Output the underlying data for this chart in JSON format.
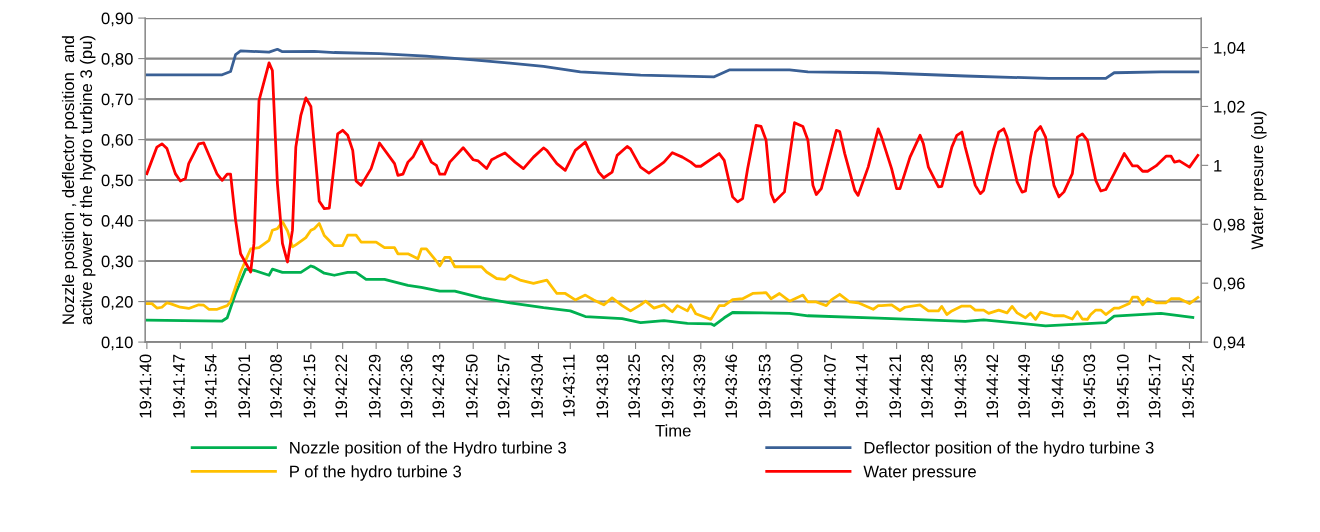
{
  "chart_data": {
    "type": "line",
    "xlabel": "Time",
    "ylabel": "Nozzle position , deflector position  and\nactive power of the hydro turbine 3 (pu)",
    "y2label": "Water presure (pu)",
    "xlim": [
      19.6943,
      19.7574
    ],
    "xticks": [
      {
        "value": 19.6944,
        "label": "19:41:40"
      },
      {
        "value": 19.6964,
        "label": "19:41:47"
      },
      {
        "value": 19.6983,
        "label": "19:41:54"
      },
      {
        "value": 19.7003,
        "label": "19:42:01"
      },
      {
        "value": 19.7022,
        "label": "19:42:08"
      },
      {
        "value": 19.7042,
        "label": "19:42:15"
      },
      {
        "value": 19.7061,
        "label": "19:42:22"
      },
      {
        "value": 19.7081,
        "label": "19:42:29"
      },
      {
        "value": 19.71,
        "label": "19:42:36"
      },
      {
        "value": 19.7119,
        "label": "19:42:43"
      },
      {
        "value": 19.7139,
        "label": "19:42:50"
      },
      {
        "value": 19.7158,
        "label": "19:42:57"
      },
      {
        "value": 19.7178,
        "label": "19:43:04"
      },
      {
        "value": 19.7197,
        "label": "19:43:11"
      },
      {
        "value": 19.7217,
        "label": "19:43:18"
      },
      {
        "value": 19.7236,
        "label": "19:43:25"
      },
      {
        "value": 19.7256,
        "label": "19:43:32"
      },
      {
        "value": 19.7275,
        "label": "19:43:39"
      },
      {
        "value": 19.7294,
        "label": "19:43:46"
      },
      {
        "value": 19.7314,
        "label": "19:43:53"
      },
      {
        "value": 19.7333,
        "label": "19:44:00"
      },
      {
        "value": 19.7353,
        "label": "19:44:07"
      },
      {
        "value": 19.7372,
        "label": "19:44:14"
      },
      {
        "value": 19.7392,
        "label": "19:44:21"
      },
      {
        "value": 19.7411,
        "label": "19:44:28"
      },
      {
        "value": 19.7431,
        "label": "19:44:35"
      },
      {
        "value": 19.745,
        "label": "19:44:42"
      },
      {
        "value": 19.7469,
        "label": "19:44:49"
      },
      {
        "value": 19.7489,
        "label": "19:44:56"
      },
      {
        "value": 19.7508,
        "label": "19:45:03"
      },
      {
        "value": 19.7528,
        "label": "19:45:10"
      },
      {
        "value": 19.7547,
        "label": "19:45:17"
      },
      {
        "value": 19.7567,
        "label": "19:45:24"
      }
    ],
    "ylim": [
      0.1,
      0.9
    ],
    "yticks": [
      {
        "value": 0.1,
        "label": "0,10"
      },
      {
        "value": 0.2,
        "label": "0,20"
      },
      {
        "value": 0.3,
        "label": "0,30"
      },
      {
        "value": 0.4,
        "label": "0,40"
      },
      {
        "value": 0.5,
        "label": "0,50"
      },
      {
        "value": 0.6,
        "label": "0,60"
      },
      {
        "value": 0.7,
        "label": "0,70"
      },
      {
        "value": 0.8,
        "label": "0,80"
      },
      {
        "value": 0.9,
        "label": "0,90"
      }
    ],
    "y2lim": [
      0.94,
      1.05
    ],
    "y2ticks": [
      {
        "value": 0.94,
        "label": "0,94"
      },
      {
        "value": 0.96,
        "label": "0,96"
      },
      {
        "value": 0.98,
        "label": "0,98"
      },
      {
        "value": 1,
        "label": "1"
      },
      {
        "value": 1.02,
        "label": "1,02"
      },
      {
        "value": 1.04,
        "label": "1,04"
      }
    ],
    "grid": "y",
    "legend": "bottom",
    "marker": "none",
    "line_style": "solid",
    "series": [
      {
        "name": "Nozzle position of the Hydro turbine 3",
        "color": "#00b050",
        "x": [
          19.6944,
          19.6989,
          19.6992,
          19.6997,
          19.7003,
          19.7008,
          19.7017,
          19.7019,
          19.7025,
          19.7036,
          19.7042,
          19.7044,
          19.705,
          19.7056,
          19.7064,
          19.7069,
          19.7075,
          19.7086,
          19.71,
          19.7108,
          19.7119,
          19.7128,
          19.7144,
          19.7161,
          19.7181,
          19.7197,
          19.7206,
          19.7228,
          19.7239,
          19.7253,
          19.7267,
          19.7281,
          19.7283,
          19.7289,
          19.7294,
          19.7328,
          19.7339,
          19.7381,
          19.7433,
          19.7444,
          19.7481,
          19.7517,
          19.7522,
          19.755,
          19.7569
        ],
        "values": [
          0.154,
          0.152,
          0.16,
          0.22,
          0.28,
          0.277,
          0.265,
          0.28,
          0.272,
          0.272,
          0.288,
          0.285,
          0.27,
          0.265,
          0.272,
          0.272,
          0.255,
          0.255,
          0.24,
          0.235,
          0.226,
          0.226,
          0.209,
          0.197,
          0.185,
          0.177,
          0.163,
          0.158,
          0.148,
          0.153,
          0.146,
          0.145,
          0.141,
          0.16,
          0.173,
          0.171,
          0.165,
          0.159,
          0.151,
          0.155,
          0.14,
          0.148,
          0.164,
          0.171,
          0.161
        ]
      },
      {
        "name": "Deflector position of the hydro turbine 3",
        "color": "#3a6095",
        "x": [
          19.6944,
          19.6989,
          19.6994,
          19.6997,
          19.7,
          19.7017,
          19.7022,
          19.7025,
          19.7044,
          19.7056,
          19.7083,
          19.7111,
          19.7139,
          19.7161,
          19.7181,
          19.7203,
          19.7239,
          19.7283,
          19.7292,
          19.7328,
          19.7339,
          19.7381,
          19.7433,
          19.7483,
          19.7517,
          19.7522,
          19.755,
          19.7572
        ],
        "values": [
          0.76,
          0.76,
          0.768,
          0.81,
          0.819,
          0.816,
          0.823,
          0.817,
          0.818,
          0.815,
          0.812,
          0.806,
          0.797,
          0.789,
          0.781,
          0.767,
          0.759,
          0.755,
          0.772,
          0.772,
          0.767,
          0.765,
          0.757,
          0.751,
          0.751,
          0.765,
          0.767,
          0.767
        ]
      },
      {
        "name": "P of the hydro turbine 3",
        "color": "#ffc000",
        "x": [
          19.6944,
          19.6947,
          19.695,
          19.6953,
          19.6956,
          19.6958,
          19.6964,
          19.6969,
          19.6975,
          19.6978,
          19.6981,
          19.6986,
          19.6992,
          19.6994,
          19.7,
          19.7006,
          19.7011,
          19.7017,
          19.7019,
          19.7022,
          19.7025,
          19.7028,
          19.7031,
          19.7033,
          19.7039,
          19.7042,
          19.7044,
          19.7047,
          19.705,
          19.7056,
          19.7061,
          19.7064,
          19.7069,
          19.7072,
          19.7081,
          19.7086,
          19.7092,
          19.7094,
          19.71,
          19.7106,
          19.7108,
          19.7111,
          19.7117,
          19.7119,
          19.7122,
          19.7125,
          19.7128,
          19.7144,
          19.7147,
          19.7153,
          19.7158,
          19.7161,
          19.7167,
          19.7175,
          19.7183,
          19.7189,
          19.7194,
          19.72,
          19.7206,
          19.7211,
          19.7217,
          19.7222,
          19.7228,
          19.7233,
          19.7239,
          19.7242,
          19.7247,
          19.7253,
          19.7258,
          19.7261,
          19.7267,
          19.7269,
          19.7272,
          19.7281,
          19.7286,
          19.7289,
          19.7294,
          19.73,
          19.7306,
          19.7314,
          19.7317,
          19.7322,
          19.7328,
          19.7336,
          19.7339,
          19.7344,
          19.735,
          19.7353,
          19.7358,
          19.7364,
          19.7369,
          19.7378,
          19.7381,
          19.7383,
          19.7389,
          19.7394,
          19.7397,
          19.7406,
          19.7411,
          19.7417,
          19.7419,
          19.7422,
          19.7425,
          19.7431,
          19.7436,
          19.7439,
          19.7444,
          19.7447,
          19.7453,
          19.7458,
          19.7461,
          19.7464,
          19.7469,
          19.7472,
          19.7475,
          19.7478,
          19.7486,
          19.7492,
          19.7497,
          19.75,
          19.7503,
          19.7506,
          19.7508,
          19.7511,
          19.7514,
          19.7517,
          19.7522,
          19.7525,
          19.7531,
          19.7533,
          19.7536,
          19.7539,
          19.7542,
          19.7547,
          19.7553,
          19.7556,
          19.7561,
          19.7567,
          19.7572
        ],
        "values": [
          0.195,
          0.195,
          0.184,
          0.186,
          0.197,
          0.195,
          0.186,
          0.183,
          0.192,
          0.191,
          0.181,
          0.181,
          0.19,
          0.2,
          0.273,
          0.33,
          0.333,
          0.351,
          0.376,
          0.38,
          0.397,
          0.375,
          0.335,
          0.34,
          0.358,
          0.376,
          0.38,
          0.393,
          0.363,
          0.338,
          0.338,
          0.364,
          0.364,
          0.347,
          0.347,
          0.333,
          0.333,
          0.318,
          0.318,
          0.306,
          0.33,
          0.33,
          0.3,
          0.288,
          0.309,
          0.309,
          0.286,
          0.286,
          0.273,
          0.257,
          0.255,
          0.265,
          0.253,
          0.245,
          0.253,
          0.22,
          0.22,
          0.204,
          0.216,
          0.204,
          0.192,
          0.209,
          0.19,
          0.177,
          0.192,
          0.201,
          0.184,
          0.192,
          0.175,
          0.19,
          0.177,
          0.192,
          0.17,
          0.156,
          0.19,
          0.19,
          0.205,
          0.207,
          0.22,
          0.222,
          0.207,
          0.22,
          0.201,
          0.216,
          0.199,
          0.199,
          0.19,
          0.204,
          0.218,
          0.199,
          0.197,
          0.181,
          0.19,
          0.19,
          0.192,
          0.178,
          0.186,
          0.192,
          0.177,
          0.177,
          0.188,
          0.168,
          0.177,
          0.189,
          0.189,
          0.179,
          0.179,
          0.171,
          0.179,
          0.172,
          0.188,
          0.172,
          0.16,
          0.171,
          0.156,
          0.174,
          0.165,
          0.165,
          0.157,
          0.175,
          0.157,
          0.156,
          0.168,
          0.179,
          0.179,
          0.168,
          0.184,
          0.184,
          0.195,
          0.211,
          0.211,
          0.192,
          0.207,
          0.197,
          0.197,
          0.207,
          0.207,
          0.195,
          0.21
        ]
      },
      {
        "name": "Water pressure",
        "color": "#ff0000",
        "axis": "y2",
        "x": [
          19.6944,
          19.695,
          19.6953,
          19.6956,
          19.6961,
          19.6964,
          19.6967,
          19.6969,
          19.6975,
          19.6978,
          19.6986,
          19.6989,
          19.6992,
          19.6994,
          19.6997,
          19.7,
          19.7006,
          19.7008,
          19.7011,
          19.7017,
          19.7019,
          19.7022,
          19.7025,
          19.7028,
          19.7031,
          19.7033,
          19.7036,
          19.7039,
          19.7042,
          19.7047,
          19.705,
          19.7053,
          19.7058,
          19.7061,
          19.7064,
          19.7067,
          19.7069,
          19.7072,
          19.7078,
          19.7083,
          19.7092,
          19.7094,
          19.7097,
          19.71,
          19.7103,
          19.7108,
          19.7114,
          19.7117,
          19.7119,
          19.7122,
          19.7125,
          19.7133,
          19.7139,
          19.7142,
          19.7147,
          19.715,
          19.7153,
          19.7158,
          19.7164,
          19.7169,
          19.7175,
          19.7181,
          19.7183,
          19.7189,
          19.7194,
          19.72,
          19.7206,
          19.7214,
          19.7217,
          19.7222,
          19.7225,
          19.7231,
          19.7233,
          19.7239,
          19.7244,
          19.7253,
          19.7258,
          19.7264,
          19.7269,
          19.7272,
          19.7275,
          19.7286,
          19.7289,
          19.7294,
          19.7297,
          19.73,
          19.7303,
          19.7308,
          19.7311,
          19.7314,
          19.7317,
          19.7319,
          19.7325,
          19.7328,
          19.7331,
          19.7336,
          19.7339,
          19.7342,
          19.7344,
          19.7347,
          19.7356,
          19.7358,
          19.7361,
          19.7367,
          19.7369,
          19.7375,
          19.7381,
          19.7383,
          19.7389,
          19.7392,
          19.7394,
          19.74,
          19.7406,
          19.7408,
          19.7411,
          19.7417,
          19.7419,
          19.7425,
          19.7428,
          19.7431,
          19.7433,
          19.7439,
          19.7442,
          19.7444,
          19.745,
          19.7453,
          19.7456,
          19.7458,
          19.7464,
          19.7467,
          19.7469,
          19.7472,
          19.7475,
          19.7478,
          19.7481,
          19.7486,
          19.7489,
          19.7492,
          19.7497,
          19.75,
          19.7503,
          19.7506,
          19.7511,
          19.7514,
          19.7517,
          19.7522,
          19.7528,
          19.7533,
          19.7536,
          19.7539,
          19.7542,
          19.7547,
          19.7553,
          19.7556,
          19.7558,
          19.7561,
          19.7567,
          19.7572
        ],
        "values": [
          0.9972,
          1.0062,
          1.0073,
          1.0057,
          0.9972,
          0.9947,
          0.9955,
          1.0006,
          1.0073,
          1.0076,
          0.997,
          0.9949,
          0.997,
          0.997,
          0.9814,
          0.97,
          0.9638,
          0.9735,
          1.022,
          1.0348,
          1.0322,
          0.9938,
          0.9735,
          0.9672,
          0.978,
          1.0062,
          1.017,
          1.0229,
          1.02,
          0.9878,
          0.9853,
          0.9855,
          1.0107,
          1.0119,
          1.0102,
          1.0051,
          0.9947,
          0.9932,
          0.9989,
          1.0076,
          1.0006,
          0.9966,
          0.997,
          1.0011,
          1.0028,
          1.0082,
          1.0011,
          1.0,
          0.997,
          0.997,
          1.0011,
          1.006,
          1.0019,
          1.0015,
          0.9989,
          1.0019,
          1.0028,
          1.0042,
          1.0011,
          0.9989,
          1.0028,
          1.0059,
          1.0051,
          1.0006,
          0.9983,
          1.0051,
          1.0079,
          0.9977,
          0.9958,
          0.9977,
          1.0034,
          1.0064,
          1.0056,
          0.9994,
          0.9974,
          1.0011,
          1.0043,
          1.0028,
          1.0011,
          0.9997,
          0.9997,
          1.004,
          1.0017,
          0.9893,
          0.9876,
          0.9887,
          0.9989,
          1.0136,
          1.0132,
          1.0085,
          0.9904,
          0.9876,
          0.991,
          1.0028,
          1.0145,
          1.0132,
          1.0085,
          0.9932,
          0.9901,
          0.9921,
          1.0119,
          1.0115,
          1.004,
          0.9915,
          0.9898,
          0.9994,
          1.0124,
          1.0096,
          0.9989,
          0.9921,
          0.9921,
          1.0028,
          1.0102,
          1.0073,
          0.9994,
          0.9927,
          0.9929,
          1.0062,
          1.0102,
          1.0113,
          1.0062,
          0.9932,
          0.9904,
          0.9915,
          1.0056,
          1.0113,
          1.0124,
          1.0096,
          0.9944,
          0.9909,
          0.9913,
          1.0028,
          1.0113,
          1.0132,
          1.0096,
          0.9932,
          0.9893,
          0.991,
          0.9972,
          1.0096,
          1.0107,
          1.0085,
          0.9949,
          0.9913,
          0.9918,
          0.9972,
          1.004,
          0.9998,
          0.9998,
          0.998,
          0.998,
          0.9998,
          1.0031,
          1.0031,
          1.0011,
          1.0015,
          0.9994,
          1.0034
        ]
      }
    ]
  }
}
